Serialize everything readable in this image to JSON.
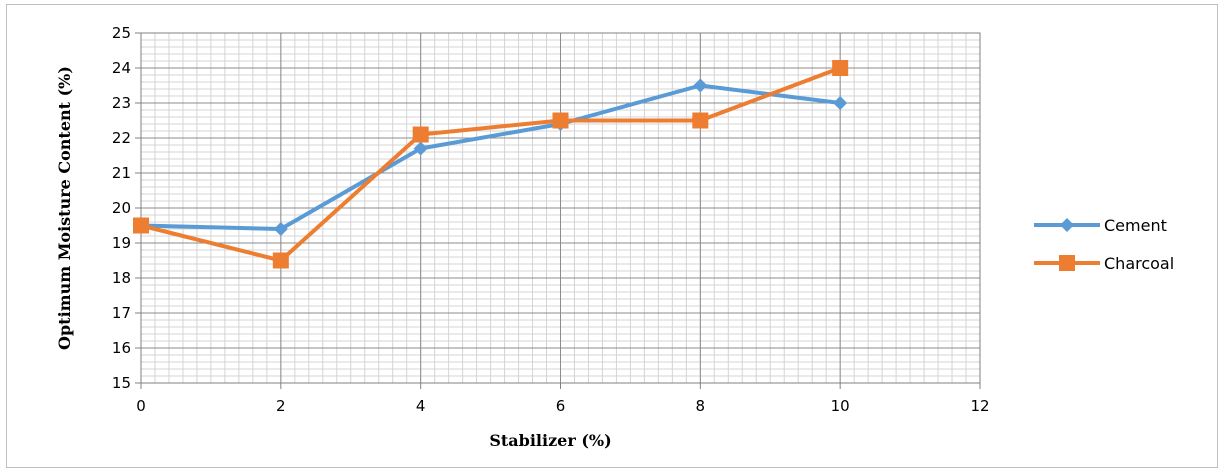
{
  "chart_data": {
    "type": "line",
    "title": "",
    "xlabel": "Stabilizer (%)",
    "ylabel": "Optimum Moisture Content (%)",
    "xlim": [
      0,
      12
    ],
    "ylim": [
      15,
      25
    ],
    "xticks": [
      0,
      2,
      4,
      6,
      8,
      10,
      12
    ],
    "yticks": [
      15,
      16,
      17,
      18,
      19,
      20,
      21,
      22,
      23,
      24,
      25
    ],
    "grid": true,
    "legend_position": "right",
    "series": [
      {
        "name": "Cement",
        "color": "#5B9BD5",
        "marker": "diamond",
        "x": [
          0,
          2,
          4,
          6,
          8,
          10
        ],
        "y": [
          19.5,
          19.4,
          21.7,
          22.4,
          23.5,
          23.0
        ]
      },
      {
        "name": "Charcoal",
        "color": "#ED7D31",
        "marker": "square",
        "x": [
          0,
          2,
          4,
          6,
          8,
          10
        ],
        "y": [
          19.5,
          18.5,
          22.1,
          22.5,
          22.5,
          24.0
        ]
      }
    ]
  }
}
